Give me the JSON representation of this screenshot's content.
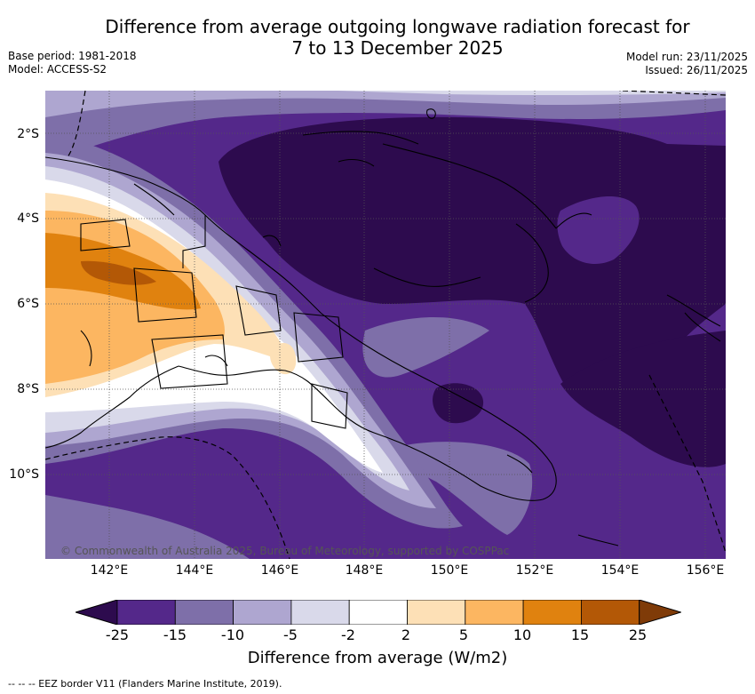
{
  "title_line1": "Difference from average outgoing longwave radiation forecast for",
  "title_line2": "7 to 13 December 2025",
  "base_period": "Base period: 1981-2018",
  "model": "Model: ACCESS-S2",
  "model_run": "Model run: 23/11/2025",
  "issued": "Issued: 26/11/2025",
  "lat_labels": [
    "2°S",
    "4°S",
    "6°S",
    "8°S",
    "10°S"
  ],
  "lon_labels": [
    "142°E",
    "144°E",
    "146°E",
    "148°E",
    "150°E",
    "152°E",
    "154°E",
    "156°E"
  ],
  "copyright": "© Commonwealth of Australia 2025, Bureau of Meteorology, supported by COSPPac",
  "colorbar": {
    "label": "Difference from average (W/m2)",
    "ticks": [
      "-25",
      "-15",
      "-10",
      "-5",
      "-2",
      "2",
      "5",
      "10",
      "15",
      "25"
    ],
    "colors": [
      "#2d0b4e",
      "#54288a",
      "#7e6fa9",
      "#aea6d0",
      "#d9d9ea",
      "#ffffff",
      "#fde0b6",
      "#fcb661",
      "#e0820f",
      "#b35806",
      "#7f3b08"
    ]
  },
  "footer": "-- -- -- EEZ border V11 (Flanders Marine Institute, 2019)."
}
